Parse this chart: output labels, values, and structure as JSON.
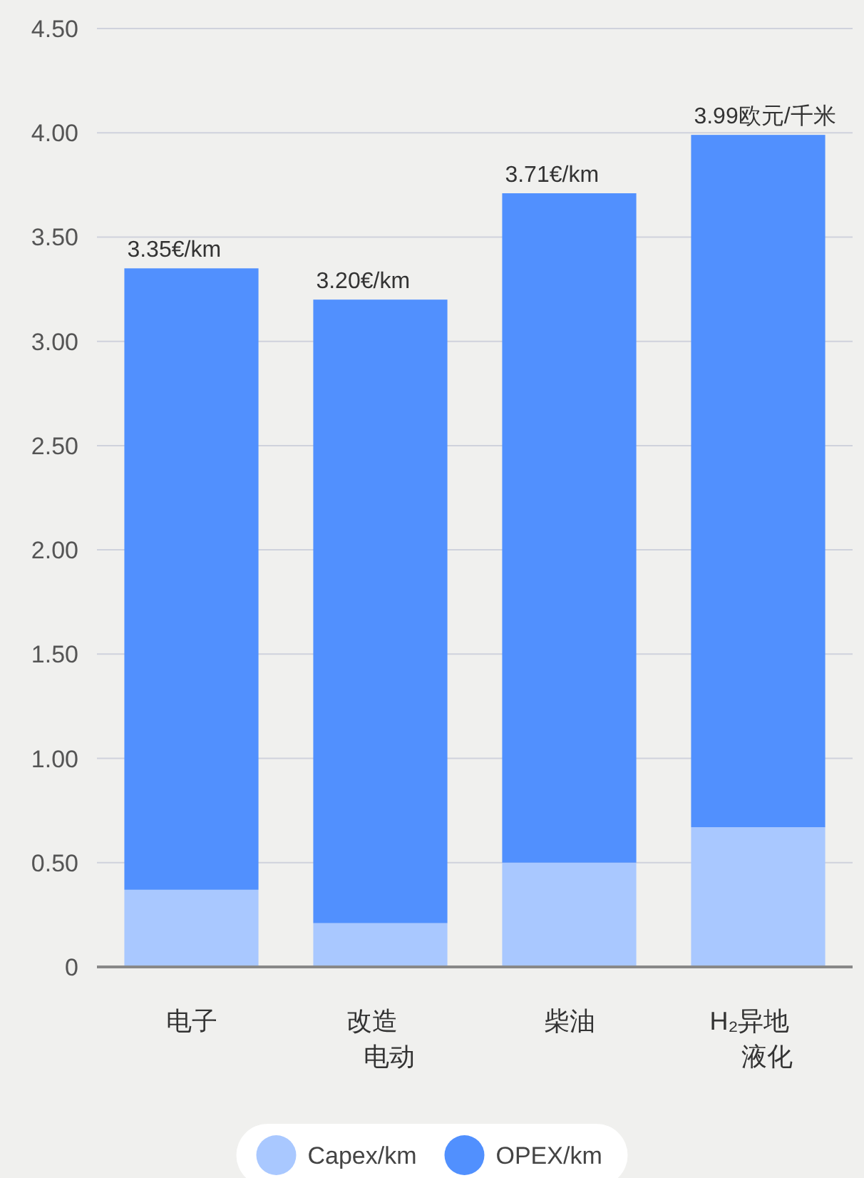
{
  "chart_data": {
    "type": "bar",
    "stacked": true,
    "categories": [
      "电子",
      "改造电动",
      "柴油",
      "H₂异地液化"
    ],
    "series": [
      {
        "name": "Capex/km",
        "color": "#a9c8ff",
        "values": [
          0.37,
          0.21,
          0.5,
          0.67
        ]
      },
      {
        "name": "OPEX/km",
        "color": "#5190fe",
        "values": [
          2.98,
          2.99,
          3.21,
          3.32
        ]
      }
    ],
    "totals": [
      "3.35€/km",
      "3.20€/km",
      "3.71€/km",
      "3.99欧元/千米"
    ],
    "ylim": [
      0,
      4.5
    ],
    "yticks": [
      {
        "value": 0,
        "label": "0"
      },
      {
        "value": 0.5,
        "label": "0.50"
      },
      {
        "value": 1,
        "label": "1.00"
      },
      {
        "value": 1.5,
        "label": "1.50"
      },
      {
        "value": 2,
        "label": "2.00"
      },
      {
        "value": 2.5,
        "label": "2.50"
      },
      {
        "value": 3,
        "label": "3.00"
      },
      {
        "value": 3.5,
        "label": "3.50"
      },
      {
        "value": 4,
        "label": "4.00"
      },
      {
        "value": 4.5,
        "label": "4.50"
      }
    ],
    "grid": "y",
    "legend": "bottom"
  }
}
